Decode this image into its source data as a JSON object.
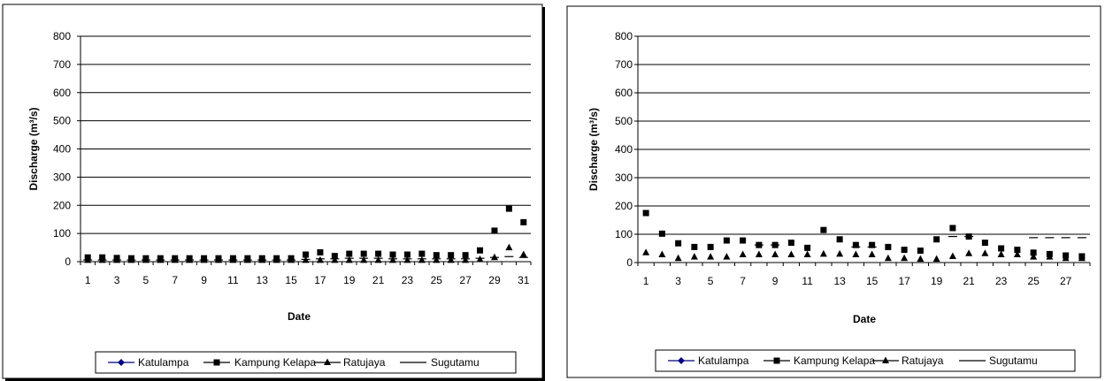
{
  "chart_data": [
    {
      "type": "line",
      "title": "",
      "xlabel": "Date",
      "ylabel": "Discharge (m³/s)",
      "ylim": [
        0,
        800
      ],
      "yticks": [
        "0",
        "100",
        "200",
        "300",
        "400",
        "500",
        "600",
        "700",
        "800"
      ],
      "xlim": [
        1,
        31
      ],
      "xtick_labels": [
        "1",
        "3",
        "5",
        "7",
        "9",
        "11",
        "13",
        "15",
        "17",
        "19",
        "21",
        "23",
        "25",
        "27",
        "29",
        "31"
      ],
      "x": [
        1,
        2,
        3,
        4,
        5,
        6,
        7,
        8,
        9,
        10,
        11,
        12,
        13,
        14,
        15,
        16,
        17,
        18,
        19,
        20,
        21,
        22,
        23,
        24,
        25,
        26,
        27,
        28,
        29,
        30,
        31
      ],
      "grid": "horizontal",
      "legend_position": "bottom",
      "series": [
        {
          "name": "Katulampa",
          "marker": "diamond",
          "color": "#000080",
          "values": [
            null,
            null,
            null,
            null,
            null,
            null,
            null,
            null,
            null,
            null,
            null,
            null,
            null,
            null,
            null,
            null,
            null,
            null,
            null,
            null,
            null,
            null,
            null,
            null,
            null,
            null,
            null,
            null,
            null,
            null,
            null
          ]
        },
        {
          "name": "Kampung Kelapa",
          "marker": "square",
          "color": "#000000",
          "values": [
            15,
            15,
            13,
            12,
            12,
            12,
            12,
            12,
            12,
            12,
            12,
            12,
            12,
            12,
            12,
            25,
            33,
            20,
            28,
            28,
            28,
            25,
            25,
            28,
            23,
            23,
            23,
            40,
            110,
            188,
            140
          ]
        },
        {
          "name": "Ratujaya",
          "marker": "triangle",
          "color": "#000000",
          "values": [
            5,
            5,
            5,
            5,
            5,
            5,
            5,
            5,
            5,
            5,
            5,
            5,
            5,
            5,
            5,
            5,
            5,
            5,
            5,
            5,
            5,
            5,
            5,
            5,
            5,
            5,
            5,
            8,
            15,
            50,
            25
          ]
        },
        {
          "name": "Sugutamu",
          "marker": "dash",
          "color": "#000000",
          "values": [
            6,
            6,
            6,
            6,
            6,
            6,
            6,
            6,
            6,
            6,
            6,
            6,
            6,
            6,
            6,
            8,
            10,
            10,
            12,
            12,
            12,
            10,
            10,
            10,
            10,
            10,
            10,
            12,
            15,
            18,
            15
          ]
        }
      ]
    },
    {
      "type": "line",
      "title": "",
      "xlabel": "Date",
      "ylabel": "Discharge (m³/s)",
      "ylim": [
        0,
        800
      ],
      "yticks": [
        "0",
        "100",
        "200",
        "300",
        "400",
        "500",
        "600",
        "700",
        "800"
      ],
      "xlim": [
        1,
        28
      ],
      "xtick_labels": [
        "1",
        "3",
        "5",
        "7",
        "9",
        "11",
        "13",
        "15",
        "17",
        "19",
        "21",
        "23",
        "25",
        "27"
      ],
      "x": [
        1,
        2,
        3,
        4,
        5,
        6,
        7,
        8,
        9,
        10,
        11,
        12,
        13,
        14,
        15,
        16,
        17,
        18,
        19,
        20,
        21,
        22,
        23,
        24,
        25,
        26,
        27,
        28
      ],
      "grid": "horizontal",
      "legend_position": "bottom",
      "series": [
        {
          "name": "Katulampa",
          "marker": "diamond",
          "color": "#000080",
          "values": [
            null,
            null,
            null,
            null,
            null,
            null,
            null,
            null,
            null,
            null,
            null,
            null,
            null,
            null,
            null,
            null,
            null,
            null,
            null,
            null,
            null,
            null,
            null,
            null,
            null,
            null,
            null,
            null
          ]
        },
        {
          "name": "Kampung Kelapa",
          "marker": "square",
          "color": "#000000",
          "values": [
            175,
            102,
            68,
            55,
            55,
            78,
            78,
            62,
            62,
            70,
            52,
            115,
            82,
            62,
            62,
            55,
            45,
            42,
            82,
            122,
            92,
            70,
            50,
            45,
            35,
            30,
            25,
            22
          ]
        },
        {
          "name": "Ratujaya",
          "marker": "triangle",
          "color": "#000000",
          "values": [
            35,
            28,
            15,
            20,
            20,
            20,
            28,
            28,
            28,
            28,
            28,
            30,
            30,
            28,
            28,
            15,
            15,
            12,
            12,
            22,
            32,
            32,
            28,
            28,
            20,
            20,
            15,
            15
          ]
        },
        {
          "name": "Sugutamu",
          "marker": "dash",
          "color": "#000000",
          "values": [
            null,
            null,
            null,
            null,
            null,
            null,
            null,
            62,
            62,
            null,
            null,
            null,
            null,
            55,
            55,
            null,
            null,
            null,
            null,
            92,
            92,
            null,
            null,
            null,
            88,
            88,
            88,
            88
          ]
        }
      ]
    }
  ]
}
